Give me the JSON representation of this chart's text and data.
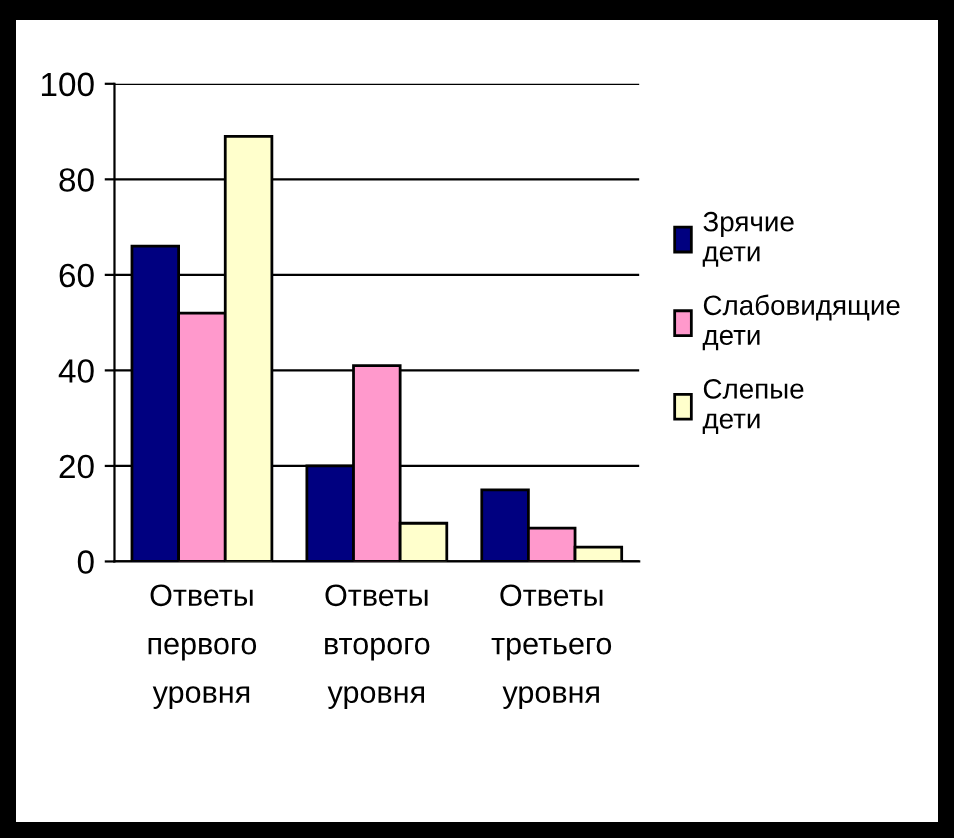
{
  "chart_data": {
    "type": "bar",
    "categories": [
      "Ответы первого уровня",
      "Ответы второго уровня",
      "Ответы третьего уровня"
    ],
    "series": [
      {
        "name": "Зрячие дети",
        "color": "#000080",
        "values": [
          66,
          20,
          15
        ]
      },
      {
        "name": "Слабовидящие дети",
        "color": "#ff99cc",
        "values": [
          52,
          41,
          7
        ]
      },
      {
        "name": "Слепые дети",
        "color": "#ffffcc",
        "values": [
          89,
          8,
          3
        ]
      }
    ],
    "ylim": [
      0,
      100
    ],
    "yticks": [
      0,
      20,
      40,
      60,
      80,
      100
    ],
    "grid": "y",
    "legend": "right"
  }
}
